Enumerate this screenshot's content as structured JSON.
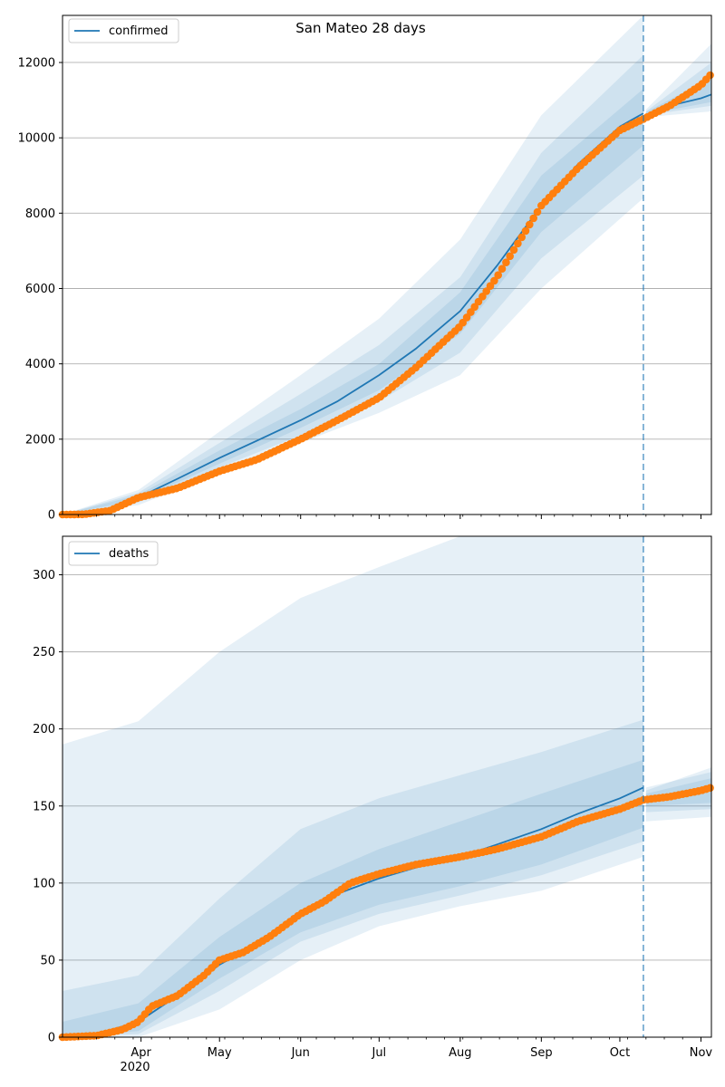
{
  "figure": {
    "suptitle": "San Mateo 28 days",
    "x_tick_labels": [
      "Apr",
      "May",
      "Jun",
      "Jul",
      "Aug",
      "Sep",
      "Oct",
      "Nov"
    ],
    "x_year_label": "2020",
    "colors": {
      "model": "#1f77b4",
      "observed": "#ff7f0e",
      "band": "#1f77b4",
      "grid": "#b0b0b0",
      "forecast_line": "#1f77b4"
    }
  },
  "chart_data": [
    {
      "type": "line",
      "panel": "top",
      "title": "San Mateo 28 days",
      "legend": {
        "label": "confirmed",
        "placement": "upper left"
      },
      "x_start": "2020-03-02",
      "x_end": "2020-11-05",
      "forecast_start": "2020-10-10",
      "ylim": [
        0,
        13250
      ],
      "yticks": [
        0,
        2000,
        4000,
        6000,
        8000,
        10000,
        12000
      ],
      "grid": "horizontal",
      "series": [
        {
          "name": "confirmed",
          "role": "model median",
          "points": [
            [
              "2020-03-02",
              0
            ],
            [
              "2020-03-10",
              10
            ],
            [
              "2020-03-20",
              120
            ],
            [
              "2020-03-31",
              450
            ],
            [
              "2020-04-15",
              950
            ],
            [
              "2020-05-01",
              1500
            ],
            [
              "2020-05-15",
              1950
            ],
            [
              "2020-06-01",
              2500
            ],
            [
              "2020-06-15",
              3000
            ],
            [
              "2020-07-01",
              3700
            ],
            [
              "2020-07-15",
              4400
            ],
            [
              "2020-08-01",
              5400
            ],
            [
              "2020-08-15",
              6600
            ],
            [
              "2020-09-01",
              8200
            ],
            [
              "2020-09-15",
              9300
            ],
            [
              "2020-10-01",
              10300
            ],
            [
              "2020-10-10",
              10650
            ],
            [
              "2020-10-20",
              10850
            ],
            [
              "2020-11-01",
              11050
            ],
            [
              "2020-11-05",
              11150
            ]
          ]
        },
        {
          "name": "",
          "role": "observed",
          "points": [
            [
              "2020-03-02",
              0
            ],
            [
              "2020-03-10",
              5
            ],
            [
              "2020-03-20",
              100
            ],
            [
              "2020-03-31",
              450
            ],
            [
              "2020-04-15",
              700
            ],
            [
              "2020-05-01",
              1150
            ],
            [
              "2020-05-15",
              1450
            ],
            [
              "2020-06-01",
              2000
            ],
            [
              "2020-06-15",
              2500
            ],
            [
              "2020-07-01",
              3100
            ],
            [
              "2020-07-15",
              3900
            ],
            [
              "2020-08-01",
              5000
            ],
            [
              "2020-08-15",
              6300
            ],
            [
              "2020-09-01",
              8200
            ],
            [
              "2020-09-15",
              9200
            ],
            [
              "2020-10-01",
              10200
            ],
            [
              "2020-10-10",
              10500
            ],
            [
              "2020-10-20",
              10850
            ],
            [
              "2020-11-01",
              11400
            ],
            [
              "2020-11-05",
              11700
            ]
          ]
        }
      ],
      "bands": {
        "dates": [
          "2020-03-02",
          "2020-03-31",
          "2020-05-01",
          "2020-06-01",
          "2020-07-01",
          "2020-08-01",
          "2020-09-01",
          "2020-10-10",
          "2020-10-11",
          "2020-11-05"
        ],
        "outer_lo": [
          0,
          250,
          1100,
          1900,
          2700,
          3700,
          6000,
          8400,
          10550,
          10700
        ],
        "outer_hi": [
          0,
          650,
          2200,
          3700,
          5200,
          7300,
          10600,
          13300,
          10750,
          12500
        ],
        "mid_lo": [
          0,
          320,
          1250,
          2100,
          3000,
          4300,
          6800,
          9000,
          10600,
          10850
        ],
        "mid_hi": [
          0,
          580,
          1900,
          3200,
          4500,
          6300,
          9600,
          12200,
          10700,
          12000
        ],
        "inner_lo": [
          0,
          380,
          1350,
          2300,
          3300,
          4800,
          7500,
          9800,
          10620,
          10950
        ],
        "inner_hi": [
          0,
          520,
          1700,
          2800,
          4000,
          5900,
          9000,
          11300,
          10680,
          11600
        ]
      }
    },
    {
      "type": "line",
      "panel": "bottom",
      "legend": {
        "label": "deaths",
        "placement": "upper left"
      },
      "x_start": "2020-03-02",
      "x_end": "2020-11-05",
      "forecast_start": "2020-10-10",
      "ylim": [
        0,
        325
      ],
      "yticks": [
        0,
        50,
        100,
        150,
        200,
        250,
        300
      ],
      "grid": "horizontal",
      "series": [
        {
          "name": "deaths",
          "role": "model median",
          "points": [
            [
              "2020-03-02",
              0
            ],
            [
              "2020-03-15",
              2
            ],
            [
              "2020-03-31",
              10
            ],
            [
              "2020-04-15",
              27
            ],
            [
              "2020-05-01",
              47
            ],
            [
              "2020-05-15",
              60
            ],
            [
              "2020-06-01",
              80
            ],
            [
              "2020-06-15",
              93
            ],
            [
              "2020-07-01",
              103
            ],
            [
              "2020-07-15",
              110
            ],
            [
              "2020-08-01",
              117
            ],
            [
              "2020-08-15",
              125
            ],
            [
              "2020-09-01",
              135
            ],
            [
              "2020-09-15",
              145
            ],
            [
              "2020-10-01",
              155
            ],
            [
              "2020-10-10",
              162
            ],
            [
              "2020-10-11",
              154
            ],
            [
              "2020-10-20",
              156
            ],
            [
              "2020-11-01",
              159
            ],
            [
              "2020-11-05",
              161
            ]
          ]
        },
        {
          "name": "",
          "role": "observed",
          "points": [
            [
              "2020-03-02",
              0
            ],
            [
              "2020-03-15",
              1
            ],
            [
              "2020-03-25",
              5
            ],
            [
              "2020-03-31",
              10
            ],
            [
              "2020-04-05",
              20
            ],
            [
              "2020-04-15",
              27
            ],
            [
              "2020-04-25",
              40
            ],
            [
              "2020-05-01",
              50
            ],
            [
              "2020-05-10",
              55
            ],
            [
              "2020-05-20",
              65
            ],
            [
              "2020-06-01",
              80
            ],
            [
              "2020-06-10",
              88
            ],
            [
              "2020-06-20",
              100
            ],
            [
              "2020-07-01",
              106
            ],
            [
              "2020-07-15",
              112
            ],
            [
              "2020-08-01",
              117
            ],
            [
              "2020-08-15",
              122
            ],
            [
              "2020-09-01",
              130
            ],
            [
              "2020-09-15",
              140
            ],
            [
              "2020-10-01",
              148
            ],
            [
              "2020-10-10",
              154
            ],
            [
              "2020-10-20",
              156
            ],
            [
              "2020-11-01",
              160
            ],
            [
              "2020-11-05",
              162
            ]
          ]
        }
      ],
      "bands": {
        "dates": [
          "2020-03-02",
          "2020-03-31",
          "2020-05-01",
          "2020-06-01",
          "2020-07-01",
          "2020-08-01",
          "2020-09-01",
          "2020-10-10",
          "2020-10-11",
          "2020-11-05"
        ],
        "outer_lo": [
          0,
          0,
          18,
          50,
          72,
          85,
          95,
          117,
          140,
          143
        ],
        "outer_hi": [
          190,
          205,
          250,
          285,
          305,
          325,
          330,
          330,
          160,
          175
        ],
        "mid_lo": [
          0,
          2,
          30,
          62,
          80,
          92,
          105,
          127,
          146,
          148
        ],
        "mid_hi": [
          30,
          40,
          90,
          135,
          155,
          170,
          185,
          206,
          162,
          172
        ],
        "inner_lo": [
          0,
          4,
          38,
          68,
          86,
          98,
          112,
          136,
          150,
          152
        ],
        "inner_hi": [
          10,
          22,
          65,
          100,
          122,
          140,
          158,
          180,
          158,
          168
        ]
      }
    }
  ]
}
